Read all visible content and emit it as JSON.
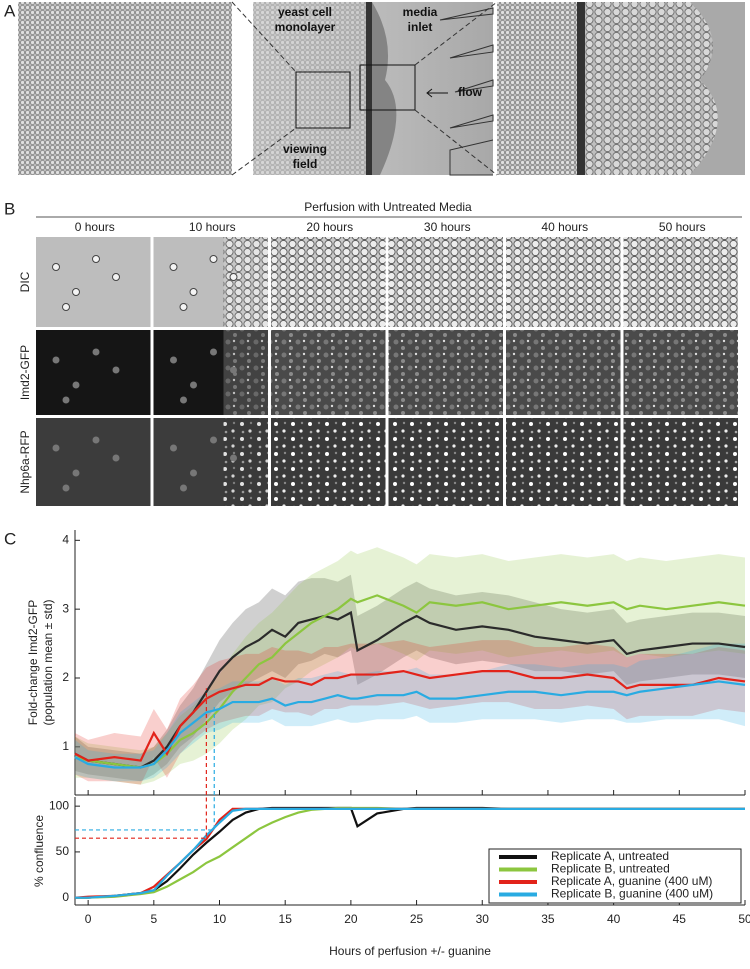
{
  "panels": [
    "A",
    "B",
    "C"
  ],
  "panel_a": {
    "labels": [
      "yeast cell",
      "monolayer",
      "media",
      "inlet",
      "viewing",
      "field",
      "flow"
    ]
  },
  "panel_b": {
    "title": "Perfusion with Untreated Media",
    "columns": [
      "0 hours",
      "10 hours",
      "20 hours",
      "30 hours",
      "40 hours",
      "50 hours"
    ],
    "rows": [
      "DIC",
      "Imd2-GFP",
      "Nhp6a-RFP"
    ]
  },
  "chart_data": [
    {
      "type": "line",
      "ylabel": [
        "Fold-change Imd2-GFP",
        "(population mean ± std)"
      ],
      "x": [
        -1,
        0,
        2,
        4,
        5,
        6,
        7,
        8,
        9,
        10,
        11,
        12,
        13,
        14,
        15,
        16,
        17,
        18,
        19,
        20,
        20.5,
        22,
        24,
        25,
        26,
        28,
        30,
        32,
        34,
        36,
        38,
        40,
        41,
        42,
        44,
        46,
        48,
        50
      ],
      "xlim": [
        -1,
        50
      ],
      "xticks": [
        0,
        5,
        10,
        15,
        20,
        25,
        30,
        35,
        40,
        45,
        50
      ],
      "ylim": [
        0.3,
        4.15
      ],
      "yticks": [
        1,
        2,
        3,
        4
      ],
      "series": [
        {
          "color": "#2b2b2b",
          "values": [
            0.9,
            0.8,
            0.75,
            0.7,
            0.8,
            1.0,
            1.3,
            1.5,
            1.8,
            2.1,
            2.3,
            2.45,
            2.55,
            2.7,
            2.6,
            2.8,
            2.85,
            2.9,
            2.85,
            2.95,
            2.4,
            2.55,
            2.8,
            2.9,
            2.8,
            2.7,
            2.75,
            2.7,
            2.6,
            2.55,
            2.5,
            2.55,
            2.35,
            2.4,
            2.45,
            2.5,
            2.5,
            2.45
          ],
          "std": [
            0.25,
            0.2,
            0.2,
            0.2,
            0.2,
            0.25,
            0.3,
            0.35,
            0.4,
            0.45,
            0.5,
            0.55,
            0.55,
            0.6,
            0.6,
            0.6,
            0.6,
            0.55,
            0.55,
            0.55,
            0.5,
            0.5,
            0.5,
            0.5,
            0.5,
            0.5,
            0.5,
            0.5,
            0.5,
            0.45,
            0.45,
            0.45,
            0.45,
            0.45,
            0.45,
            0.45,
            0.45,
            0.45
          ]
        },
        {
          "color": "#8cc63f",
          "values": [
            0.85,
            0.8,
            0.75,
            0.7,
            0.75,
            0.9,
            1.1,
            1.2,
            1.35,
            1.55,
            1.8,
            2.0,
            2.2,
            2.3,
            2.5,
            2.65,
            2.8,
            2.9,
            3.0,
            3.15,
            3.1,
            3.2,
            3.05,
            2.95,
            3.1,
            3.05,
            3.1,
            3.0,
            3.05,
            3.1,
            3.05,
            3.1,
            3.0,
            3.05,
            3.0,
            3.05,
            3.1,
            3.05
          ],
          "std": [
            0.3,
            0.25,
            0.25,
            0.25,
            0.25,
            0.3,
            0.35,
            0.4,
            0.45,
            0.5,
            0.55,
            0.6,
            0.6,
            0.65,
            0.65,
            0.7,
            0.7,
            0.7,
            0.7,
            0.7,
            0.7,
            0.7,
            0.7,
            0.7,
            0.7,
            0.7,
            0.7,
            0.7,
            0.7,
            0.7,
            0.7,
            0.7,
            0.7,
            0.7,
            0.7,
            0.7,
            0.7,
            0.7
          ]
        },
        {
          "color": "#e2231a",
          "values": [
            0.9,
            0.8,
            0.85,
            0.8,
            1.2,
            0.9,
            1.3,
            1.5,
            1.7,
            1.8,
            1.85,
            1.9,
            1.9,
            2.0,
            1.95,
            1.95,
            1.9,
            2.0,
            2.0,
            2.05,
            2.05,
            2.05,
            2.1,
            2.05,
            2.0,
            2.05,
            2.1,
            2.1,
            2.0,
            2.0,
            2.05,
            2.0,
            1.85,
            1.9,
            1.9,
            1.9,
            2.0,
            1.95
          ],
          "std": [
            0.3,
            0.3,
            0.35,
            0.35,
            0.35,
            0.35,
            0.4,
            0.4,
            0.45,
            0.45,
            0.45,
            0.45,
            0.45,
            0.45,
            0.45,
            0.45,
            0.45,
            0.45,
            0.45,
            0.45,
            0.45,
            0.45,
            0.45,
            0.45,
            0.45,
            0.45,
            0.45,
            0.45,
            0.45,
            0.45,
            0.45,
            0.45,
            0.45,
            0.45,
            0.45,
            0.45,
            0.45,
            0.45
          ]
        },
        {
          "color": "#29abe2",
          "values": [
            0.85,
            0.75,
            0.7,
            0.7,
            0.75,
            0.95,
            1.2,
            1.35,
            1.5,
            1.55,
            1.65,
            1.65,
            1.65,
            1.7,
            1.6,
            1.65,
            1.65,
            1.7,
            1.75,
            1.7,
            1.7,
            1.75,
            1.75,
            1.8,
            1.7,
            1.7,
            1.75,
            1.8,
            1.8,
            1.75,
            1.8,
            1.8,
            1.75,
            1.8,
            1.85,
            1.9,
            1.95,
            1.9
          ],
          "std": [
            0.25,
            0.2,
            0.2,
            0.2,
            0.2,
            0.25,
            0.3,
            0.3,
            0.3,
            0.3,
            0.3,
            0.3,
            0.3,
            0.3,
            0.3,
            0.35,
            0.35,
            0.35,
            0.35,
            0.35,
            0.35,
            0.35,
            0.35,
            0.35,
            0.35,
            0.35,
            0.35,
            0.4,
            0.4,
            0.4,
            0.4,
            0.4,
            0.4,
            0.45,
            0.45,
            0.5,
            0.55,
            0.6
          ]
        }
      ],
      "guides": [
        {
          "x": 9,
          "y": 1.85,
          "color": "#e2231a"
        },
        {
          "x": 9.6,
          "y": 1.6,
          "color": "#29abe2"
        }
      ]
    },
    {
      "type": "line",
      "ylabel": [
        "% confluence"
      ],
      "xlabel": "Hours of perfusion +/- guanine",
      "x": [
        -1,
        0,
        2,
        4,
        5,
        6,
        7,
        8,
        9,
        10,
        11,
        12,
        13,
        14,
        15,
        16,
        17,
        18,
        19,
        20,
        20.5,
        22,
        24,
        25,
        26,
        28,
        30,
        32,
        34,
        36,
        38,
        40,
        41,
        42,
        44,
        46,
        48,
        50
      ],
      "xlim": [
        -1,
        50
      ],
      "xticks": [
        0,
        5,
        10,
        15,
        20,
        25,
        30,
        35,
        40,
        45,
        50
      ],
      "ylim": [
        -8,
        110
      ],
      "yticks": [
        0,
        50,
        100
      ],
      "legend": "lower right",
      "series": [
        {
          "name": "Replicate A, untreated",
          "color": "#111111",
          "values": [
            0,
            0,
            2,
            5,
            8,
            18,
            32,
            47,
            60,
            72,
            85,
            93,
            97,
            98,
            98,
            98,
            98,
            98,
            98,
            98,
            78,
            92,
            97,
            98,
            98,
            98,
            98,
            97,
            97,
            97,
            97,
            97,
            97,
            97,
            97,
            97,
            97,
            97
          ]
        },
        {
          "name": "Replicate B, untreated",
          "color": "#8cc63f",
          "values": [
            0,
            0,
            1,
            4,
            6,
            12,
            20,
            28,
            38,
            45,
            55,
            65,
            75,
            82,
            88,
            93,
            96,
            97,
            98,
            98,
            98,
            98,
            97,
            97,
            97,
            97,
            97,
            97,
            97,
            97,
            97,
            97,
            97,
            97,
            97,
            97,
            97,
            97
          ]
        },
        {
          "name": "Replicate A, guanine (400 uM)",
          "color": "#e2231a",
          "values": [
            0,
            1,
            2,
            5,
            12,
            25,
            38,
            52,
            64,
            85,
            97,
            97,
            97,
            97,
            97,
            97,
            97,
            97,
            97,
            97,
            97,
            97,
            97,
            97,
            97,
            97,
            97,
            97,
            97,
            97,
            97,
            97,
            97,
            97,
            97,
            97,
            97,
            97
          ]
        },
        {
          "name": "Replicate B, guanine (400 uM)",
          "color": "#29abe2",
          "values": [
            0,
            0,
            2,
            5,
            8,
            24,
            38,
            52,
            68,
            82,
            95,
            97,
            97,
            97,
            97,
            97,
            97,
            97,
            97,
            97,
            97,
            97,
            97,
            97,
            97,
            97,
            97,
            97,
            97,
            97,
            97,
            97,
            97,
            97,
            97,
            97,
            97,
            97
          ]
        }
      ],
      "guides": [
        {
          "x": 9,
          "y": 65,
          "color": "#e2231a"
        },
        {
          "x": 9.6,
          "y": 74,
          "color": "#29abe2"
        }
      ]
    }
  ]
}
